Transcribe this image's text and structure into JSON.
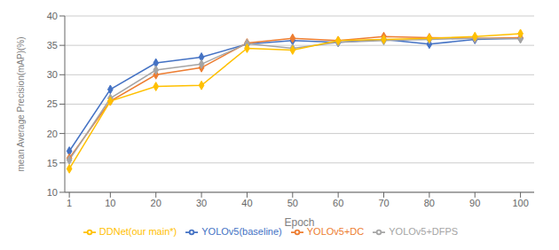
{
  "chart_data": {
    "type": "line",
    "x": [
      1,
      10,
      20,
      30,
      40,
      50,
      60,
      70,
      80,
      90,
      100
    ],
    "series": [
      {
        "name": "YOLOv5(baseline)",
        "color": "#4472C4",
        "marker": "diamond",
        "values": [
          17.0,
          27.5,
          32.0,
          33.0,
          35.2,
          35.8,
          35.5,
          36.0,
          35.2,
          36.0,
          36.2
        ]
      },
      {
        "name": "YOLOv5+DC",
        "color": "#ED7D31",
        "marker": "diamond",
        "values": [
          15.8,
          25.5,
          30.0,
          31.2,
          35.4,
          36.2,
          35.8,
          36.5,
          36.3,
          36.2,
          36.3
        ]
      },
      {
        "name": "YOLOv5+DFPS",
        "color": "#A5A5A5",
        "marker": "diamond",
        "values": [
          15.5,
          26.0,
          30.8,
          31.8,
          35.3,
          34.5,
          35.5,
          35.8,
          36.0,
          36.2,
          36.1
        ]
      },
      {
        "name": "DDNet(our main*)",
        "color": "#FFC000",
        "marker": "diamond",
        "values": [
          14.0,
          25.5,
          28.0,
          28.2,
          34.5,
          34.2,
          35.8,
          36.0,
          36.2,
          36.5,
          37.0
        ]
      }
    ],
    "xlabel": "Epoch",
    "ylabel": "mean Average Precision(mAP)(%)",
    "xlim": [
      0,
      103
    ],
    "ylim": [
      10,
      40
    ],
    "xticks": [
      1,
      10,
      20,
      30,
      40,
      50,
      60,
      70,
      80,
      90,
      100
    ],
    "yticks": [
      10,
      15,
      20,
      25,
      30,
      35,
      40
    ],
    "grid": "y",
    "legend": "bottom"
  }
}
